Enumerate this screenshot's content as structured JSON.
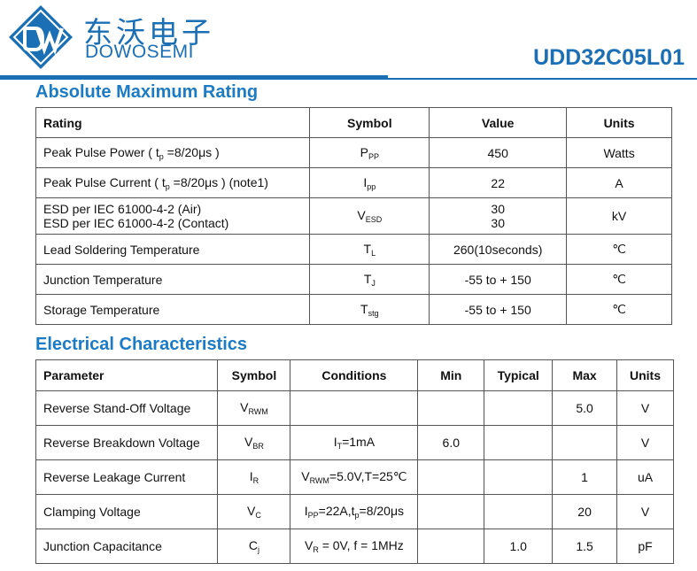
{
  "header": {
    "brand_cn": "东沃电子",
    "brand_en": "DOWOSEMI",
    "part_number": "UDD32C05L01",
    "brand_color": "#1b6fb4"
  },
  "abs_max": {
    "title": "Absolute Maximum Rating",
    "columns": [
      "Rating",
      "Symbol",
      "Value",
      "Units"
    ],
    "rows": [
      {
        "rating_pre": "Peak Pulse Power ( ",
        "rating_t": "t",
        "rating_t_sub": "p",
        "rating_post": " =8/20μs )",
        "sym": "P",
        "sym_sub": "PP",
        "value": "450",
        "units": "Watts"
      },
      {
        "rating_pre": "Peak Pulse Current ( ",
        "rating_t": "t",
        "rating_t_sub": "p",
        "rating_post": " =8/20μs ) (note1)",
        "sym": "I",
        "sym_sub": "pp",
        "value": "22",
        "units": "A"
      },
      {
        "rating_line1": "ESD per IEC 61000-4-2 (Air)",
        "rating_line2": "ESD per IEC 61000-4-2 (Contact)",
        "sym": "V",
        "sym_sub": "ESD",
        "value1": "30",
        "value2": "30",
        "units": "kV"
      },
      {
        "rating": "Lead Soldering Temperature",
        "sym": "T",
        "sym_sub": "L",
        "value": "260(10seconds)",
        "units": "℃"
      },
      {
        "rating": "Junction Temperature",
        "sym": "T",
        "sym_sub": "J",
        "value": "-55 to + 150",
        "units": "℃"
      },
      {
        "rating": "Storage Temperature",
        "sym": "T",
        "sym_sub": "stg",
        "value": "-55 to + 150",
        "units": "℃"
      }
    ]
  },
  "elec": {
    "title": "Electrical Characteristics",
    "columns": [
      "Parameter",
      "Symbol",
      "Conditions",
      "Min",
      "Typical",
      "Max",
      "Units"
    ],
    "rows": [
      {
        "param": "Reverse Stand-Off Voltage",
        "sym": "V",
        "sym_sub": "RWM",
        "cond": "",
        "min": "",
        "typ": "",
        "max": "5.0",
        "units": "V"
      },
      {
        "param": "Reverse Breakdown Voltage",
        "sym": "V",
        "sym_sub": "BR",
        "cond_a": "I",
        "cond_a_sub": "T",
        "cond_b": "=1mA",
        "min": "6.0",
        "typ": "",
        "max": "",
        "units": "V"
      },
      {
        "param": "Reverse Leakage Current",
        "sym": "I",
        "sym_sub": "R",
        "cond_a": "V",
        "cond_a_sub": "RWM",
        "cond_b": "=5.0V,T=25℃",
        "min": "",
        "typ": "",
        "max": "1",
        "units": "uA"
      },
      {
        "param": "Clamping Voltage",
        "sym": "V",
        "sym_sub": "C",
        "cond_a": "I",
        "cond_a_sub": "PP",
        "cond_b": "=22A,t",
        "cond_c_sub": "p",
        "cond_d": "=8/20μs",
        "min": "",
        "typ": "",
        "max": "20",
        "units": "V"
      },
      {
        "param": "Junction Capacitance",
        "sym": "C",
        "sym_sub": "j",
        "cond_a": "V",
        "cond_a_sub": "R",
        "cond_b": " = 0V, f = 1MHz",
        "min": "",
        "typ": "1.0",
        "max": "1.5",
        "units": "pF"
      }
    ]
  }
}
